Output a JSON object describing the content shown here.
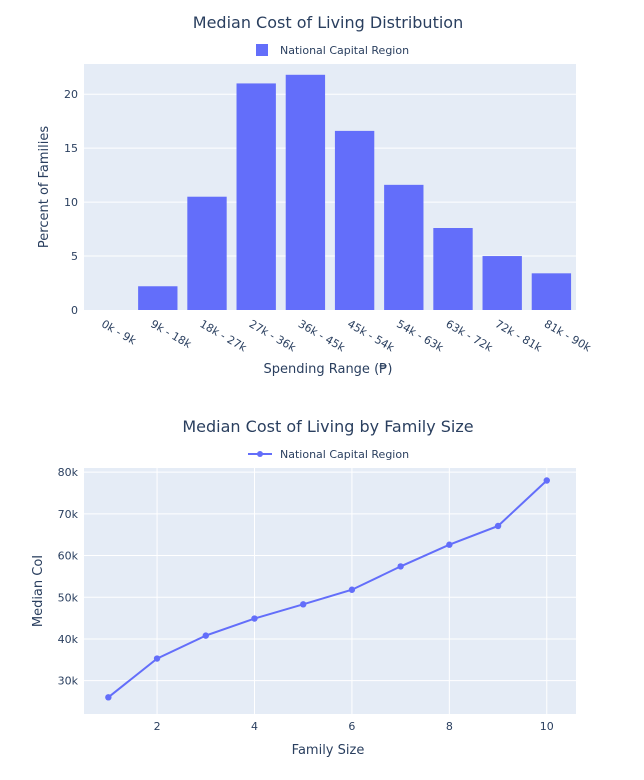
{
  "chart_data": [
    {
      "type": "bar",
      "title": "Median Cost of Living Distribution",
      "xlabel": "Spending Range (₱)",
      "ylabel": "Percent of Families",
      "legend": {
        "position": "top-center",
        "entries": [
          "National Capital Region"
        ]
      },
      "categories": [
        "0k - 9k",
        "9k - 18k",
        "18k - 27k",
        "27k - 36k",
        "36k - 45k",
        "45k - 54k",
        "54k - 63k",
        "63k - 72k",
        "72k - 81k",
        "81k - 90k"
      ],
      "series": [
        {
          "name": "National Capital Region",
          "values": [
            0,
            2.2,
            10.5,
            21,
            21.8,
            16.6,
            11.6,
            7.6,
            5,
            3.4
          ]
        }
      ],
      "ylim": [
        0,
        22.8
      ],
      "yticks": [
        0,
        5,
        10,
        15,
        20
      ],
      "grid": true,
      "color": "#636efa"
    },
    {
      "type": "line",
      "title": "Median Cost of Living by Family Size",
      "xlabel": "Family Size",
      "ylabel": "Median CoI",
      "legend": {
        "position": "top-center",
        "entries": [
          "National Capital Region"
        ]
      },
      "x": [
        1,
        2,
        3,
        4,
        5,
        6,
        7,
        8,
        9,
        10
      ],
      "series": [
        {
          "name": "National Capital Region",
          "values": [
            26000,
            35300,
            40800,
            44900,
            48300,
            51800,
            57400,
            62600,
            67100,
            78000
          ]
        }
      ],
      "xlim": [
        0.5,
        10.6
      ],
      "ylim": [
        22000,
        81000
      ],
      "xticks": [
        2,
        4,
        6,
        8,
        10
      ],
      "yticks": [
        30000,
        40000,
        50000,
        60000,
        70000,
        80000
      ],
      "ytick_labels": [
        "30k",
        "40k",
        "50k",
        "60k",
        "70k",
        "80k"
      ],
      "grid": true,
      "color": "#636efa"
    }
  ]
}
